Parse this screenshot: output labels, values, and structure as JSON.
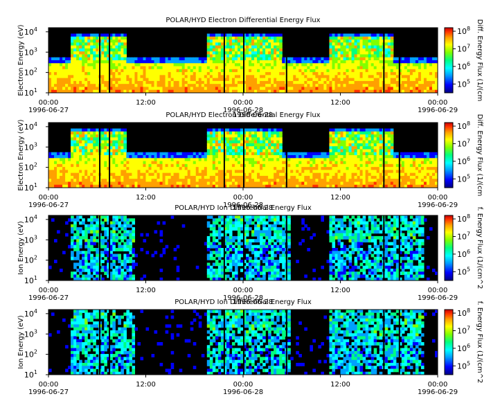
{
  "figure": {
    "type": "heatmap",
    "panels": [
      {
        "title": "POLAR/HYD  Electron Differential Energy Flux",
        "ylabel": "Electron Energy (eV)",
        "colorbar_label": "Diff. Energy Flux (1/(cm",
        "date_overlay": ""
      },
      {
        "title": "POLAR/HYD  Electron Differential Energy Flux",
        "ylabel": "Electron Energy (eV)",
        "colorbar_label": "Diff. Energy Flux (1/(cm",
        "date_overlay": "1996-06-28"
      },
      {
        "title": "POLAR/HYD  Ion Differential Energy Flux",
        "ylabel": "Ion Energy (eV)",
        "colorbar_label": "f. Energy Flux (1/(cm^2",
        "date_overlay": "1996-06-28"
      },
      {
        "title": "POLAR/HYD  Ion Differential Energy Flux",
        "ylabel": "Ion Energy (eV)",
        "colorbar_label": "f. Energy Flux (1/(cm^2",
        "date_overlay": "1996-06-28"
      }
    ],
    "x_ticks": [
      {
        "hours": 0,
        "time": "00:00",
        "date": "1996-06-27"
      },
      {
        "hours": 12,
        "time": "12:00",
        "date": ""
      },
      {
        "hours": 24,
        "time": "00:00",
        "date": "1996-06-28"
      },
      {
        "hours": 36,
        "time": "12:00",
        "date": ""
      },
      {
        "hours": 48,
        "time": "00:00",
        "date": "1996-06-29"
      }
    ],
    "x_range_hours": [
      0,
      48
    ],
    "y_log_range": [
      1,
      4.2
    ],
    "y_ticks": [
      {
        "exp": 1,
        "label": "10",
        "sup": "1"
      },
      {
        "exp": 2,
        "label": "10",
        "sup": "2"
      },
      {
        "exp": 3,
        "label": "10",
        "sup": "3"
      },
      {
        "exp": 4,
        "label": "10",
        "sup": "4"
      }
    ],
    "colorbar_log_range": [
      4.5,
      8.2
    ],
    "colorbar_ticks": [
      {
        "exp": 5,
        "label": "10",
        "sup": "5"
      },
      {
        "exp": 6,
        "label": "10",
        "sup": "6"
      },
      {
        "exp": 7,
        "label": "10",
        "sup": "7"
      },
      {
        "exp": 8,
        "label": "10",
        "sup": "8"
      }
    ],
    "colormap": [
      "#000080",
      "#0000ff",
      "#00a0ff",
      "#00ffff",
      "#00ff80",
      "#80ff00",
      "#ffff00",
      "#ffa000",
      "#ff3000",
      "#c00000"
    ],
    "background_color": "#000000"
  }
}
